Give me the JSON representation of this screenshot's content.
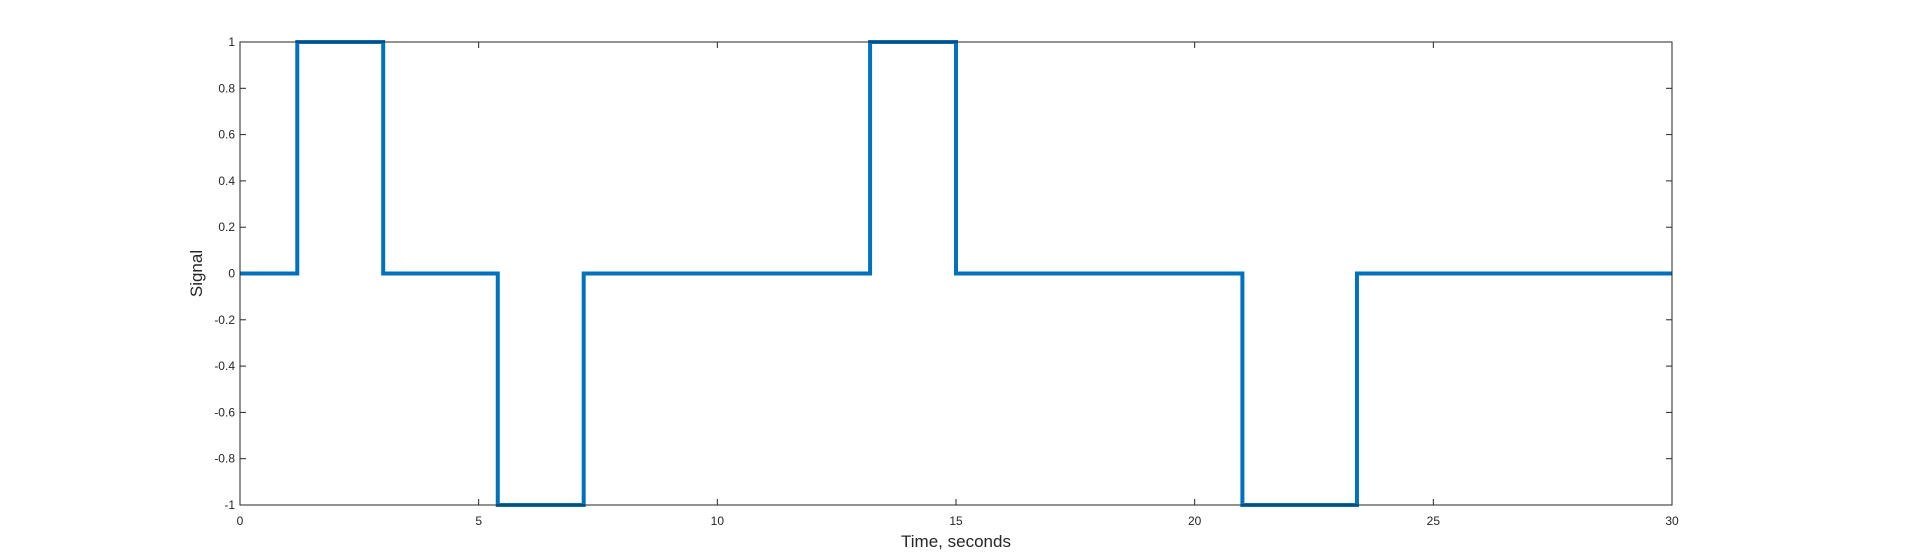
{
  "chart_data": {
    "type": "line",
    "title": "",
    "xlabel": "Time, seconds",
    "ylabel": "Signal",
    "xlim": [
      0,
      30
    ],
    "ylim": [
      -1,
      1
    ],
    "x_ticks": [
      0,
      5,
      10,
      15,
      20,
      25,
      30
    ],
    "y_ticks": [
      -1,
      -0.8,
      -0.6,
      -0.4,
      -0.2,
      0,
      0.2,
      0.4,
      0.6,
      0.8,
      1
    ],
    "x_tick_labels": [
      "0",
      "5",
      "10",
      "15",
      "20",
      "25",
      "30"
    ],
    "y_tick_labels": [
      "-1",
      "-0.8",
      "-0.6",
      "-0.4",
      "-0.2",
      "0",
      "0.2",
      "0.4",
      "0.6",
      "0.8",
      "1"
    ],
    "grid": false,
    "series": [
      {
        "color": "#0072BD",
        "step": true,
        "x": [
          0,
          1.2,
          1.2,
          3.0,
          3.0,
          5.4,
          5.4,
          7.2,
          7.2,
          13.2,
          13.2,
          15.0,
          15.0,
          21.0,
          21.0,
          23.4,
          23.4,
          30
        ],
        "y": [
          0,
          0,
          1,
          1,
          0,
          0,
          -1,
          -1,
          0,
          0,
          1,
          1,
          0,
          0,
          -1,
          -1,
          0,
          0
        ]
      }
    ]
  }
}
